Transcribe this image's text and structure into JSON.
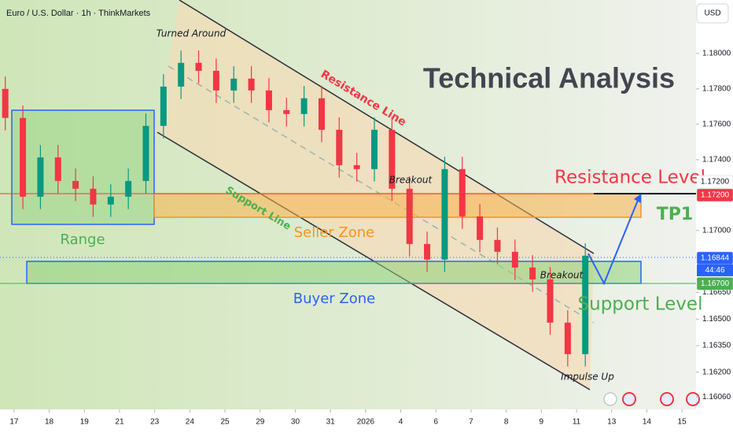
{
  "chart_data": {
    "type": "candlestick",
    "title": "Technical Analysis",
    "symbol": "Euro / U.S. Dollar · 1h · ThinkMarkets",
    "currency": "USD",
    "xlim": [
      -0.4,
      19.4
    ],
    "xticks": [
      {
        "value": 0,
        "label": "17"
      },
      {
        "value": 1,
        "label": "18"
      },
      {
        "value": 2,
        "label": "19"
      },
      {
        "value": 3,
        "label": "21"
      },
      {
        "value": 4,
        "label": "23"
      },
      {
        "value": 5,
        "label": "24"
      },
      {
        "value": 6,
        "label": "25"
      },
      {
        "value": 7,
        "label": "29"
      },
      {
        "value": 8,
        "label": "30"
      },
      {
        "value": 9,
        "label": "31"
      },
      {
        "value": 10,
        "label": "2026"
      },
      {
        "value": 11,
        "label": "4"
      },
      {
        "value": 12,
        "label": "6"
      },
      {
        "value": 13,
        "label": "7"
      },
      {
        "value": 14,
        "label": "8"
      },
      {
        "value": 15,
        "label": "9"
      },
      {
        "value": 16,
        "label": "11"
      },
      {
        "value": 17,
        "label": "13"
      },
      {
        "value": 18,
        "label": "14"
      },
      {
        "value": 19,
        "label": "15"
      }
    ],
    "ylim": [
      1.1599,
      1.18302
    ],
    "yticks": [
      {
        "value": 1.18,
        "label": "1.18000"
      },
      {
        "value": 1.178,
        "label": "1.17800"
      },
      {
        "value": 1.176,
        "label": "1.17600"
      },
      {
        "value": 1.174,
        "label": "1.17400"
      },
      {
        "value": 1.17,
        "label": "1.17000"
      },
      {
        "value": 1.1665,
        "label": "1.16650"
      },
      {
        "value": 1.165,
        "label": "1.16500"
      },
      {
        "value": 1.1635,
        "label": "1.16350"
      },
      {
        "value": 1.162,
        "label": "1.16200"
      },
      {
        "value": 1.1606,
        "label": "1.16060"
      }
    ],
    "up_color": "#089981",
    "down_color": "#f23645",
    "x": [
      -0.25,
      0.25,
      0.75,
      1.25,
      1.75,
      2.25,
      2.75,
      3.25,
      3.75,
      4.25,
      4.75,
      5.25,
      5.75,
      6.25,
      6.75,
      7.25,
      7.75,
      8.25,
      8.75,
      9.25,
      9.75,
      10.25,
      10.75,
      11.25,
      11.75,
      12.25,
      12.75,
      13.25,
      13.75,
      14.25,
      14.75,
      15.25,
      15.75,
      16.25
    ],
    "open": [
      1.178,
      1.17636,
      1.17191,
      1.17413,
      1.1728,
      1.17236,
      1.17147,
      1.17191,
      1.1728,
      1.17591,
      1.17813,
      1.17947,
      1.17902,
      1.17791,
      1.17858,
      1.17791,
      1.1768,
      1.17658,
      1.17747,
      1.17569,
      1.17369,
      1.17347,
      1.17569,
      1.17236,
      1.16924,
      1.16836,
      1.17347,
      1.1708,
      1.16947,
      1.1688,
      1.16791,
      1.16724,
      1.1648,
      1.16302
    ],
    "high": [
      1.1787,
      1.17706,
      1.17483,
      1.17483,
      1.1735,
      1.17306,
      1.17261,
      1.1735,
      1.17661,
      1.17883,
      1.18017,
      1.18017,
      1.17972,
      1.17928,
      1.17928,
      1.17861,
      1.1775,
      1.17817,
      1.17817,
      1.17639,
      1.17439,
      1.17639,
      1.17639,
      1.17306,
      1.16994,
      1.17417,
      1.17417,
      1.1715,
      1.17017,
      1.1695,
      1.16861,
      1.16794,
      1.1655,
      1.16928
    ],
    "low": [
      1.17566,
      1.17121,
      1.17121,
      1.1721,
      1.17166,
      1.17077,
      1.17077,
      1.17121,
      1.1721,
      1.17521,
      1.17743,
      1.17832,
      1.17721,
      1.17721,
      1.17721,
      1.1761,
      1.17588,
      1.17588,
      1.17499,
      1.17299,
      1.17277,
      1.17277,
      1.17166,
      1.16854,
      1.16766,
      1.16766,
      1.1701,
      1.16877,
      1.1681,
      1.16721,
      1.16654,
      1.1641,
      1.16232,
      1.16232
    ],
    "close": [
      1.17636,
      1.17191,
      1.17413,
      1.1728,
      1.17236,
      1.17147,
      1.17191,
      1.1728,
      1.17591,
      1.17813,
      1.17947,
      1.17902,
      1.17791,
      1.17858,
      1.17791,
      1.1768,
      1.17658,
      1.17747,
      1.17569,
      1.17369,
      1.17347,
      1.17569,
      1.17236,
      1.16924,
      1.16836,
      1.17347,
      1.1708,
      1.16947,
      1.1688,
      1.16791,
      1.16724,
      1.1648,
      1.16302,
      1.16858
    ],
    "price_tags": [
      {
        "value": 1.172,
        "label": "1.17200",
        "color": "#ffffff",
        "text_color": "#131722"
      },
      {
        "value": 1.172,
        "label": "1.17200",
        "color": "#f23645",
        "text_color": "#ffffff"
      },
      {
        "value": 1.16844,
        "label": "1.16844",
        "color": "#2962ff",
        "text_color": "#ffffff"
      },
      {
        "value": 1.167,
        "label": "1.16700",
        "color": "#4caf50",
        "text_color": "#ffffff"
      }
    ],
    "countdown": "44:46",
    "annotations": {
      "turned_around": "Turned Around",
      "resistance_line": "Resistance Line",
      "support_line": "Support Line",
      "breakout_1": "Breakout",
      "breakout_2": "Breakout",
      "impulse_up": "Impulse Up",
      "range": "Range",
      "seller_zone": "Seller Zone",
      "buyer_zone": "Buyer Zone",
      "resistance_level": "Resistance Level",
      "tp1": "TP1",
      "support_level": "Support Level"
    }
  }
}
